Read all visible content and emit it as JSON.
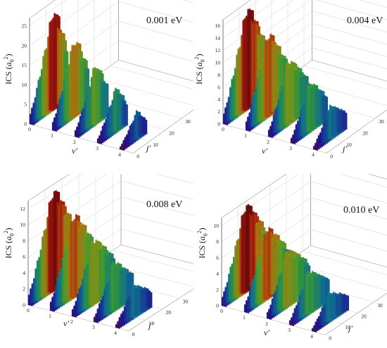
{
  "figure": {
    "ylabel_prefix": "ICS (",
    "ylabel_a": "a",
    "ylabel_sub": "0",
    "ylabel_sup": "2",
    "ylabel_suffix": ")",
    "vlabel": "v′",
    "jlabel": "j′"
  },
  "chart_data": [
    {
      "type": "bar3d",
      "energy": "0.001 eV",
      "ylabel": "ICS (a0^2)",
      "xlabel": "v′",
      "zlabel": "j′",
      "v_ticks": [
        "0",
        "1",
        "2",
        "3",
        "4"
      ],
      "j_ticks": [
        "0",
        "10",
        "20",
        "30",
        "40",
        "50"
      ],
      "y_ticks": [
        "0",
        "5",
        "10",
        "15",
        "20",
        "25"
      ],
      "ylim": [
        0,
        27
      ],
      "series": [
        {
          "v": 0,
          "jmax": 21,
          "peak_j": 14,
          "peak": 24.5
        },
        {
          "v": 1,
          "jmax": 20,
          "peak_j": 13,
          "peak": 19.0
        },
        {
          "v": 2,
          "jmax": 18,
          "peak_j": 12,
          "peak": 14.5
        },
        {
          "v": 3,
          "jmax": 16,
          "peak_j": 11,
          "peak": 10.5
        },
        {
          "v": 4,
          "jmax": 14,
          "peak_j": 10,
          "peak": 6.5
        }
      ]
    },
    {
      "type": "bar3d",
      "energy": "0.004 eV",
      "ylabel": "ICS (a0^2)",
      "xlabel": "v′",
      "zlabel": "j′",
      "v_ticks": [
        "0",
        "1",
        "2",
        "3",
        "4"
      ],
      "j_ticks": [
        "0",
        "10",
        "20",
        "30",
        "40",
        "50"
      ],
      "y_ticks": [
        "0",
        "2",
        "4",
        "6",
        "8",
        "10",
        "12",
        "14",
        "16"
      ],
      "ylim": [
        0,
        17
      ],
      "series": [
        {
          "v": 0,
          "jmax": 24,
          "peak_j": 14,
          "peak": 16.0
        },
        {
          "v": 1,
          "jmax": 23,
          "peak_j": 13,
          "peak": 13.0
        },
        {
          "v": 2,
          "jmax": 22,
          "peak_j": 12,
          "peak": 10.0
        },
        {
          "v": 3,
          "jmax": 20,
          "peak_j": 11,
          "peak": 7.5
        },
        {
          "v": 4,
          "jmax": 18,
          "peak_j": 10,
          "peak": 5.0
        }
      ]
    },
    {
      "type": "bar3d",
      "energy": "0.008 eV",
      "ylabel": "ICS (a0^2)",
      "xlabel": "v′",
      "zlabel": "j′",
      "v_ticks": [
        "0",
        "1",
        "2",
        "3",
        "4"
      ],
      "j_ticks": [
        "0",
        "10",
        "20",
        "30",
        "40",
        "50"
      ],
      "y_ticks": [
        "0",
        "2",
        "4",
        "6",
        "8",
        "10",
        "12"
      ],
      "ylim": [
        0,
        13
      ],
      "series": [
        {
          "v": 0,
          "jmax": 25,
          "peak_j": 14,
          "peak": 12.2
        },
        {
          "v": 1,
          "jmax": 24,
          "peak_j": 13,
          "peak": 10.0
        },
        {
          "v": 2,
          "jmax": 23,
          "peak_j": 12,
          "peak": 7.8
        },
        {
          "v": 3,
          "jmax": 21,
          "peak_j": 11,
          "peak": 5.8
        },
        {
          "v": 4,
          "jmax": 19,
          "peak_j": 10,
          "peak": 3.8
        }
      ]
    },
    {
      "type": "bar3d",
      "energy": "0.010 eV",
      "ylabel": "ICS (a0^2)",
      "xlabel": "v′",
      "zlabel": "j′",
      "v_ticks": [
        "0",
        "1",
        "2",
        "3",
        "4"
      ],
      "j_ticks": [
        "0",
        "10",
        "20",
        "30",
        "40",
        "50"
      ],
      "y_ticks": [
        "0",
        "2",
        "4",
        "6",
        "8",
        "10"
      ],
      "ylim": [
        0,
        11
      ],
      "series": [
        {
          "v": 0,
          "jmax": 26,
          "peak_j": 14,
          "peak": 10.5
        },
        {
          "v": 1,
          "jmax": 25,
          "peak_j": 13,
          "peak": 8.5
        },
        {
          "v": 2,
          "jmax": 24,
          "peak_j": 12,
          "peak": 6.8
        },
        {
          "v": 3,
          "jmax": 22,
          "peak_j": 11,
          "peak": 5.0
        },
        {
          "v": 4,
          "jmax": 20,
          "peak_j": 10,
          "peak": 3.3
        }
      ]
    }
  ]
}
